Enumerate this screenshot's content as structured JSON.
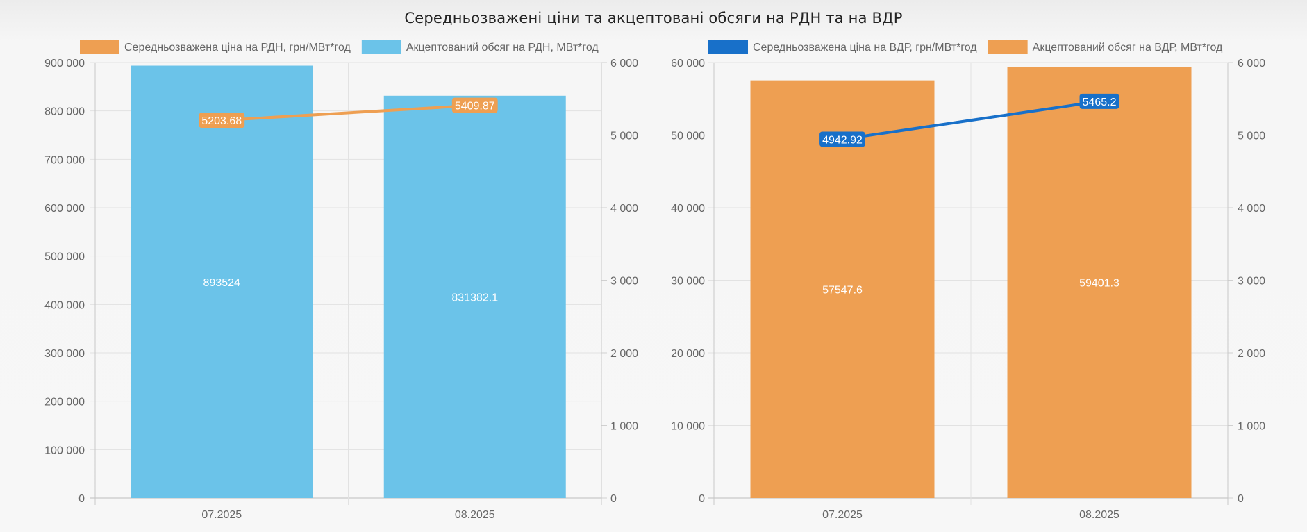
{
  "page": {
    "title": "Середньозважені ціни та акцептовані обсяги на РДН та на ВДР"
  },
  "chart_data": [
    {
      "type": "bar",
      "categories": [
        "07.2025",
        "08.2025"
      ],
      "series": [
        {
          "name": "Акцептований обсяг на РДН, МВт*год",
          "kind": "bar",
          "axis": "left",
          "color": "#6bc3e9",
          "values": [
            893524,
            831382.1
          ],
          "labels": [
            "893524",
            "831382.1"
          ]
        },
        {
          "name": "Середньозважена ціна на РДН, грн/МВт*год",
          "kind": "line",
          "axis": "right",
          "color": "#ee9f52",
          "values": [
            5203.68,
            5409.87
          ],
          "labels": [
            "5203.68",
            "5409.87"
          ]
        }
      ],
      "legend": [
        {
          "name": "Середньозважена ціна на РДН, грн/МВт*год",
          "color": "#ee9f52"
        },
        {
          "name": "Акцептований обсяг на РДН, МВт*год",
          "color": "#6bc3e9"
        }
      ],
      "left_axis": {
        "ylim": [
          0,
          900000
        ],
        "ticks": [
          "0",
          "100 000",
          "200 000",
          "300 000",
          "400 000",
          "500 000",
          "600 000",
          "700 000",
          "800 000",
          "900 000"
        ]
      },
      "right_axis": {
        "ylim": [
          0,
          6000
        ],
        "ticks": [
          "0",
          "1 000",
          "2 000",
          "3 000",
          "4 000",
          "5 000",
          "6 000"
        ]
      },
      "grid": true,
      "legend_position": "top"
    },
    {
      "type": "bar",
      "categories": [
        "07.2025",
        "08.2025"
      ],
      "series": [
        {
          "name": "Акцептований обсяг на ВДР, МВт*год",
          "kind": "bar",
          "axis": "left",
          "color": "#ee9f52",
          "values": [
            57547.6,
            59401.3
          ],
          "labels": [
            "57547.6",
            "59401.3"
          ]
        },
        {
          "name": "Середньозважена ціна на ВДР, грн/МВт*год",
          "kind": "line",
          "axis": "right",
          "color": "#1870c9",
          "values": [
            4942.92,
            5465.2
          ],
          "labels": [
            "4942.92",
            "5465.2"
          ]
        }
      ],
      "legend": [
        {
          "name": "Середньозважена ціна на ВДР, грн/МВт*год",
          "color": "#1870c9"
        },
        {
          "name": "Акцептований обсяг на ВДР, МВт*год",
          "color": "#ee9f52"
        }
      ],
      "left_axis": {
        "ylim": [
          0,
          60000
        ],
        "ticks": [
          "0",
          "10 000",
          "20 000",
          "30 000",
          "40 000",
          "50 000",
          "60 000"
        ]
      },
      "right_axis": {
        "ylim": [
          0,
          6000
        ],
        "ticks": [
          "0",
          "1 000",
          "2 000",
          "3 000",
          "4 000",
          "5 000",
          "6 000"
        ]
      },
      "grid": true,
      "legend_position": "top"
    }
  ]
}
